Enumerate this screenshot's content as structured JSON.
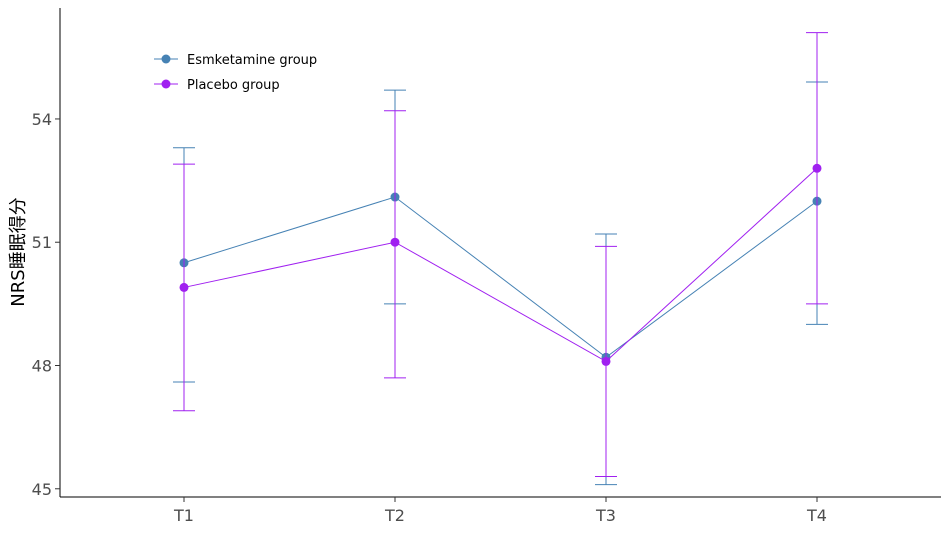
{
  "chart_data": {
    "type": "line",
    "title": "",
    "xlabel": "",
    "ylabel": "NRS睡眠得分",
    "categories": [
      "T1",
      "T2",
      "T3",
      "T4"
    ],
    "yticks": [
      45,
      48,
      51,
      54
    ],
    "ylim": [
      44.8,
      56.7
    ],
    "grid": false,
    "legend_position": "top-left",
    "series": [
      {
        "name": "Esmketamine group",
        "color": "#4682B4",
        "values": [
          50.5,
          52.1,
          48.2,
          52.0
        ],
        "error_low": [
          47.6,
          49.5,
          45.1,
          49.0
        ],
        "error_high": [
          53.3,
          54.7,
          51.2,
          54.9
        ]
      },
      {
        "name": "Placebo group",
        "color": "#A020F0",
        "values": [
          49.9,
          51.0,
          48.1,
          52.8
        ],
        "error_low": [
          46.9,
          47.7,
          45.3,
          49.5
        ],
        "error_high": [
          52.9,
          54.2,
          50.9,
          56.1
        ]
      }
    ]
  }
}
